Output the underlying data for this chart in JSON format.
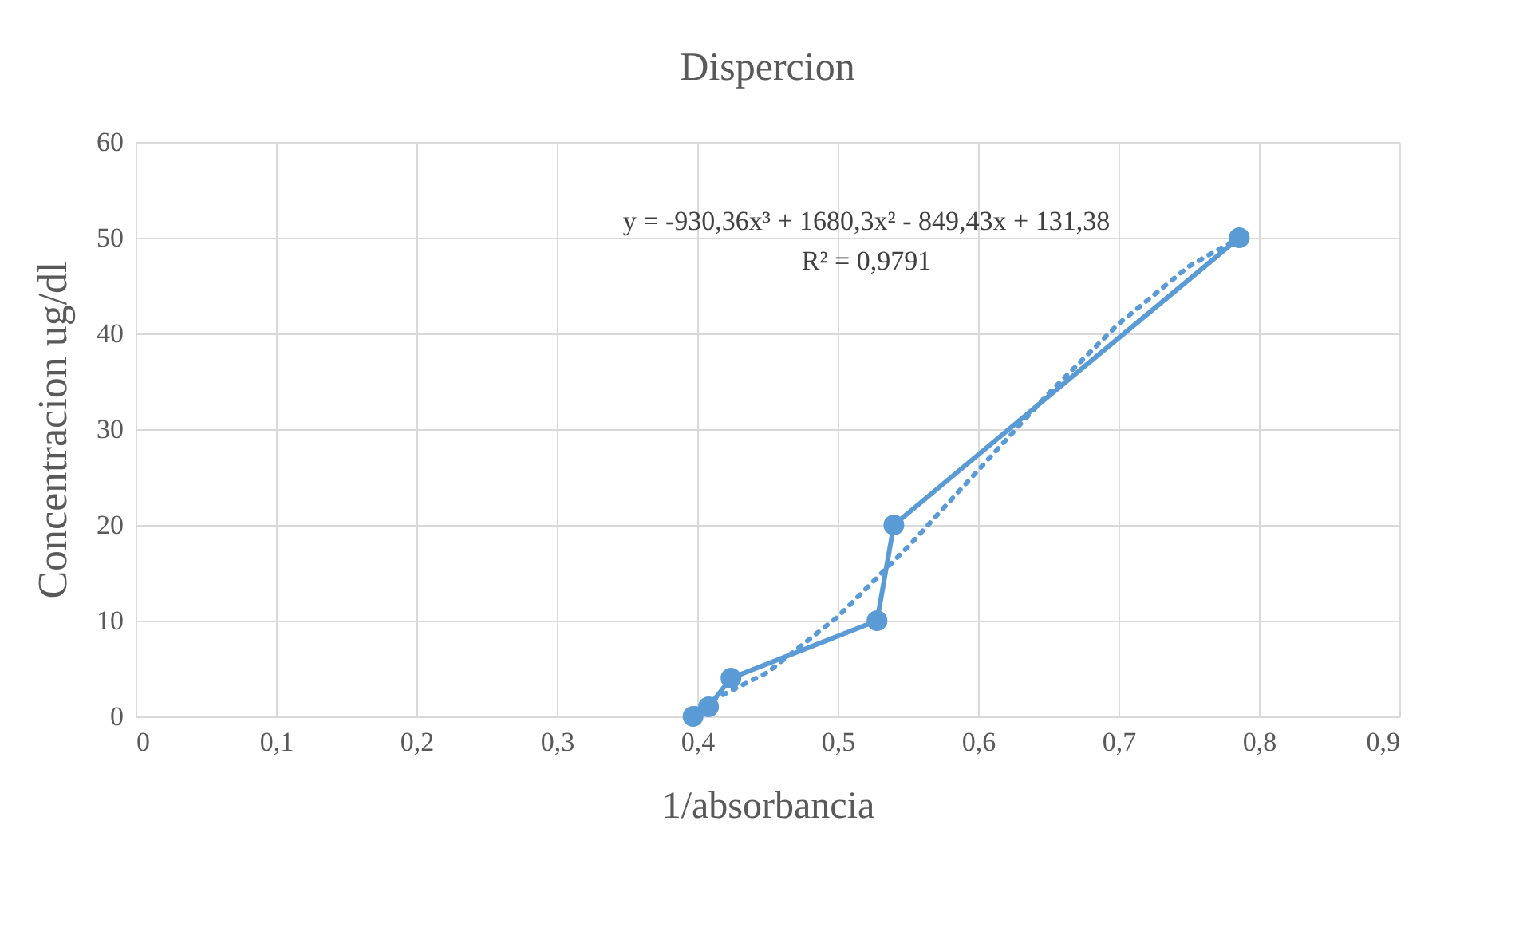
{
  "chart_data": {
    "type": "line",
    "title": "Dispercion",
    "xlabel": "1/absorbancia",
    "ylabel": "Concentracion ug/dl",
    "series": [
      {
        "color": "#5b9bd5",
        "x": [
          0.397,
          0.408,
          0.424,
          0.528,
          0.54,
          0.786
        ],
        "values": [
          0,
          1,
          4,
          10,
          20,
          50
        ],
        "marker": "circle",
        "line_style": "solid"
      },
      {
        "color": "#5b9bd5",
        "x": [
          0.397,
          0.45,
          0.5,
          0.55,
          0.6,
          0.65,
          0.7,
          0.75,
          0.786
        ],
        "values": [
          0.7,
          4.6,
          10.4,
          17.7,
          25.7,
          33.7,
          41.0,
          47.0,
          50.0
        ],
        "marker": "none",
        "line_style": "dotted"
      }
    ],
    "xlim": [
      0,
      0.9
    ],
    "xticks": [
      0,
      {
        "value": 0.1,
        "label": "0,1"
      },
      {
        "value": 0.2,
        "label": "0,2"
      },
      {
        "value": 0.3,
        "label": "0,3"
      },
      {
        "value": 0.4,
        "label": "0,4"
      },
      {
        "value": 0.5,
        "label": "0,5"
      },
      {
        "value": 0.6,
        "label": "0,6"
      },
      {
        "value": 0.7,
        "label": "0,7"
      },
      {
        "value": 0.8,
        "label": "0,8"
      },
      {
        "value": 0.9,
        "label": "0,9"
      }
    ],
    "ylim": [
      0,
      60
    ],
    "yticks": [
      0,
      10,
      20,
      30,
      40,
      50,
      60
    ],
    "annotations": [
      "y = -930,36x³ + 1680,3x² - 849,43x + 131,38",
      "R² = 0,9791"
    ],
    "grid": true,
    "legend": false
  }
}
